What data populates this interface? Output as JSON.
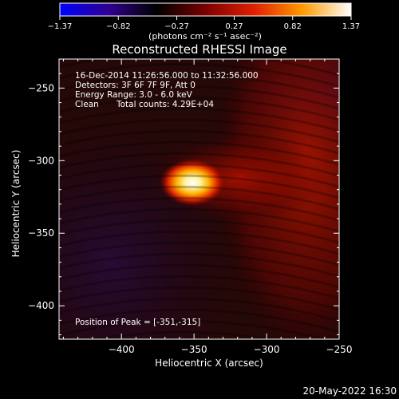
{
  "chart_data": {
    "type": "heatmap",
    "title": "Reconstructed RHESSI Image",
    "xlabel": "Heliocentric X (arcsec)",
    "ylabel": "Heliocentric Y (arcsec)",
    "xlim": [
      -443,
      -250
    ],
    "ylim": [
      -423,
      -230
    ],
    "xticks": [
      -400,
      -350,
      -300,
      -250
    ],
    "yticks": [
      -250,
      -300,
      -350,
      -400
    ],
    "xtick_labels": [
      "−400",
      "−350",
      "−300",
      "−250"
    ],
    "ytick_labels": [
      "−250",
      "−300",
      "−350",
      "−400"
    ],
    "colorbar": {
      "min": -1.37,
      "max": 1.37,
      "ticks": [
        -1.37,
        -0.82,
        -0.27,
        0.27,
        0.82,
        1.37
      ],
      "tick_labels": [
        "−1.37",
        "−0.82",
        "−0.27",
        "0.27",
        "0.82",
        "1.37"
      ],
      "unit_label": "(photons cm⁻² s⁻¹ asec⁻²)",
      "colors": [
        "#0000ff",
        "#30008f",
        "#000000",
        "#7a0000",
        "#e02000",
        "#ff9a00",
        "#ffffff"
      ]
    },
    "annotations": [
      "16-Dec-2014 11:26:56.000 to 11:32:56.000",
      "Detectors: 3F 6F 7F 9F, Att 0",
      "Energy Range: 3.0 - 6.0 keV",
      "Clean",
      "Total counts: 4.29E+04"
    ],
    "peak": {
      "x": -351,
      "y": -315,
      "label": "Position of Peak = [-351,-315]"
    },
    "features": [
      {
        "x": -351,
        "y": -315,
        "intensity": 1.37,
        "sigma_x": 7,
        "sigma_y": 5
      },
      {
        "x": -320,
        "y": -312,
        "intensity": 0.55,
        "sigma_x": 28,
        "sigma_y": 14
      },
      {
        "x": -272,
        "y": -305,
        "intensity": 0.5,
        "sigma_x": 30,
        "sigma_y": 60
      }
    ],
    "footer": "20-May-2022 16:30"
  }
}
